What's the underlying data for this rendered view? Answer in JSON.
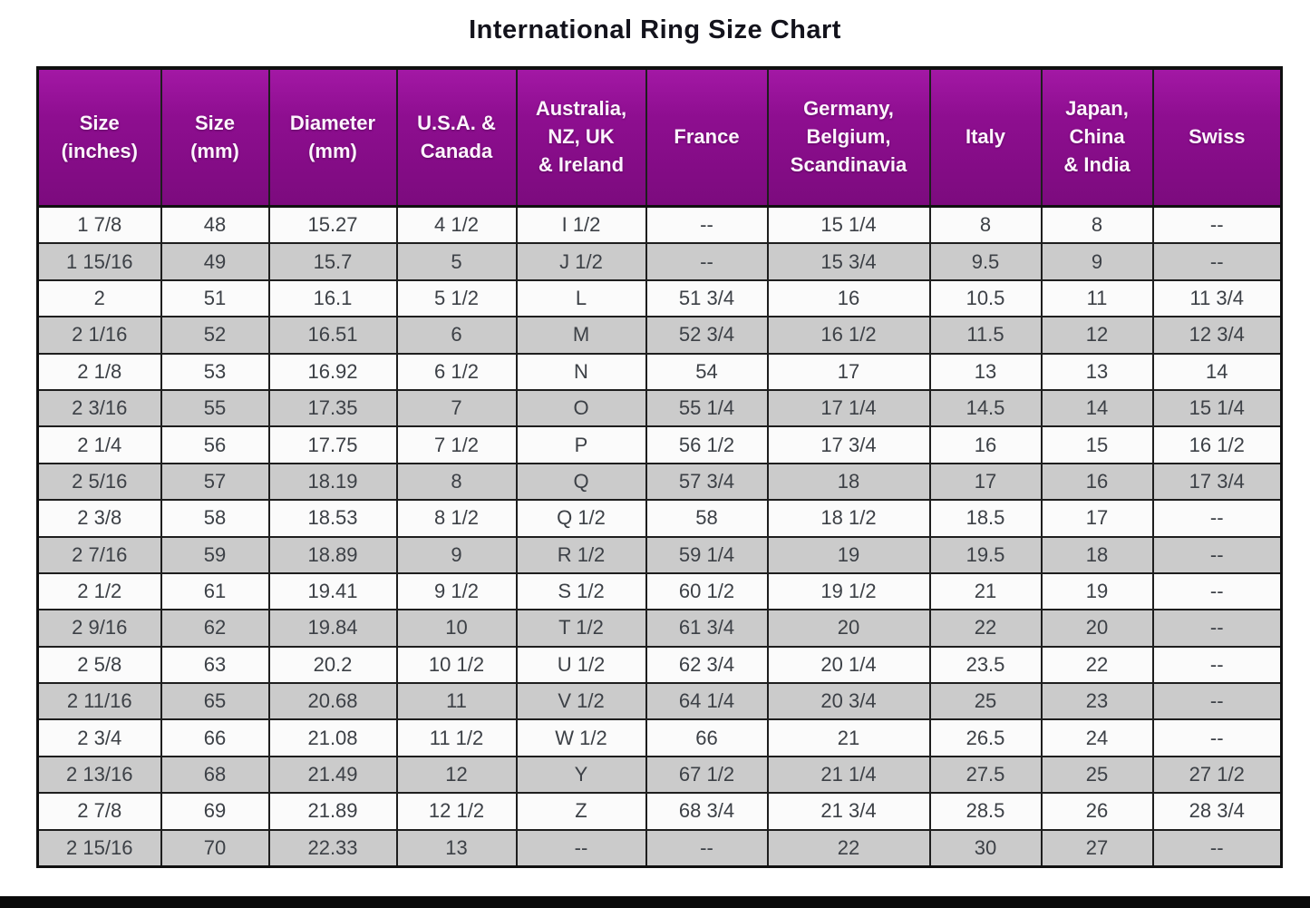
{
  "title": "International Ring Size Chart",
  "chart_data": {
    "type": "table",
    "title": "International Ring Size Chart",
    "columns": [
      "Size\n(inches)",
      "Size\n(mm)",
      "Diameter\n(mm)",
      "U.S.A. &\nCanada",
      "Australia,\nNZ, UK\n& Ireland",
      "France",
      "Germany,\nBelgium,\nScandinavia",
      "Italy",
      "Japan,\nChina\n& India",
      "Swiss"
    ],
    "rows": [
      [
        "1 7/8",
        "48",
        "15.27",
        "4 1/2",
        "I 1/2",
        "--",
        "15 1/4",
        "8",
        "8",
        "--"
      ],
      [
        "1 15/16",
        "49",
        "15.7",
        "5",
        "J 1/2",
        "--",
        "15 3/4",
        "9.5",
        "9",
        "--"
      ],
      [
        "2",
        "51",
        "16.1",
        "5 1/2",
        "L",
        "51 3/4",
        "16",
        "10.5",
        "11",
        "11 3/4"
      ],
      [
        "2 1/16",
        "52",
        "16.51",
        "6",
        "M",
        "52 3/4",
        "16 1/2",
        "11.5",
        "12",
        "12 3/4"
      ],
      [
        "2 1/8",
        "53",
        "16.92",
        "6 1/2",
        "N",
        "54",
        "17",
        "13",
        "13",
        "14"
      ],
      [
        "2 3/16",
        "55",
        "17.35",
        "7",
        "O",
        "55 1/4",
        "17 1/4",
        "14.5",
        "14",
        "15 1/4"
      ],
      [
        "2 1/4",
        "56",
        "17.75",
        "7 1/2",
        "P",
        "56 1/2",
        "17 3/4",
        "16",
        "15",
        "16 1/2"
      ],
      [
        "2 5/16",
        "57",
        "18.19",
        "8",
        "Q",
        "57 3/4",
        "18",
        "17",
        "16",
        "17 3/4"
      ],
      [
        "2 3/8",
        "58",
        "18.53",
        "8 1/2",
        "Q 1/2",
        "58",
        "18 1/2",
        "18.5",
        "17",
        "--"
      ],
      [
        "2 7/16",
        "59",
        "18.89",
        "9",
        "R 1/2",
        "59 1/4",
        "19",
        "19.5",
        "18",
        "--"
      ],
      [
        "2 1/2",
        "61",
        "19.41",
        "9 1/2",
        "S 1/2",
        "60 1/2",
        "19 1/2",
        "21",
        "19",
        "--"
      ],
      [
        "2 9/16",
        "62",
        "19.84",
        "10",
        "T 1/2",
        "61 3/4",
        "20",
        "22",
        "20",
        "--"
      ],
      [
        "2 5/8",
        "63",
        "20.2",
        "10 1/2",
        "U 1/2",
        "62 3/4",
        "20 1/4",
        "23.5",
        "22",
        "--"
      ],
      [
        "2 11/16",
        "65",
        "20.68",
        "11",
        "V 1/2",
        "64 1/4",
        "20 3/4",
        "25",
        "23",
        "--"
      ],
      [
        "2 3/4",
        "66",
        "21.08",
        "11 1/2",
        "W 1/2",
        "66",
        "21",
        "26.5",
        "24",
        "--"
      ],
      [
        "2 13/16",
        "68",
        "21.49",
        "12",
        "Y",
        "67 1/2",
        "21 1/4",
        "27.5",
        "25",
        "27 1/2"
      ],
      [
        "2 7/8",
        "69",
        "21.89",
        "12 1/2",
        "Z",
        "68 3/4",
        "21 3/4",
        "28.5",
        "26",
        "28 3/4"
      ],
      [
        "2 15/16",
        "70",
        "22.33",
        "13",
        "--",
        "--",
        "22",
        "30",
        "27",
        "--"
      ]
    ],
    "layout": {
      "grid": true,
      "striped_rows": true,
      "header_position": "top"
    }
  },
  "colors": {
    "header_bg": "#8E0E90",
    "header_bg_light": "#A318A5",
    "header_bg_dark": "#7C0B7E",
    "header_text": "#FDF4FD",
    "row_bg": "#FBFBFB",
    "row_alt_bg": "#CBCBCB",
    "cell_text": "#3C4046",
    "border": "#1E1E1E",
    "title_text": "#13131C",
    "bottom_bar": "#0A0A0A"
  }
}
